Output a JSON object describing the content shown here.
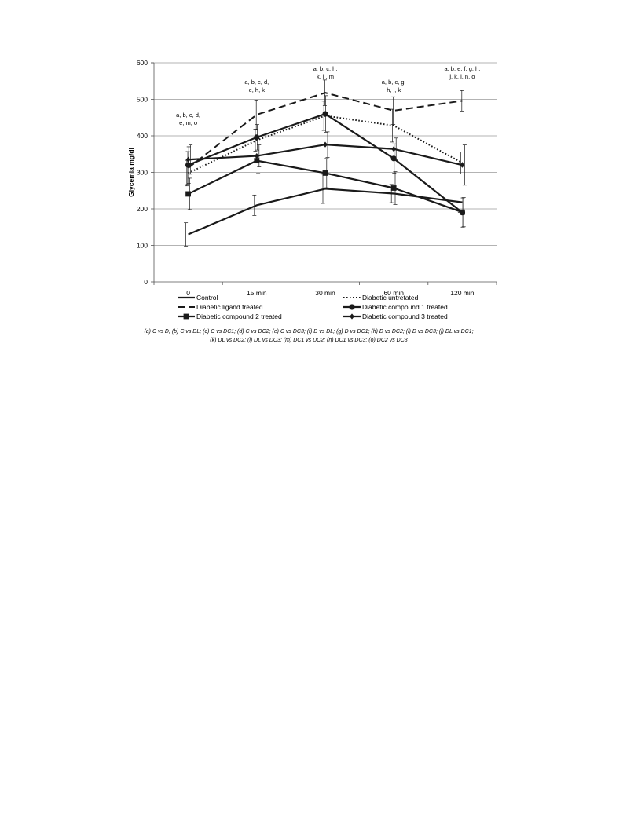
{
  "chart_data": {
    "type": "line",
    "title": "",
    "xlabel": "",
    "ylabel": "Glycemia mg/dl",
    "ylim": [
      0,
      600
    ],
    "yticks": [
      0,
      100,
      200,
      300,
      400,
      500,
      600
    ],
    "grid": true,
    "legend_position": "bottom",
    "categories": [
      "0",
      "15 min",
      "30 min",
      "60 min",
      "120 min"
    ],
    "series": [
      {
        "name": "Control",
        "style": "solid",
        "marker": "none",
        "values": [
          130,
          210,
          255,
          242,
          218
        ],
        "errors": [
          32,
          28,
          40,
          25,
          28
        ]
      },
      {
        "name": "Diabetic untretated",
        "style": "dotted",
        "marker": "none",
        "values": [
          298,
          388,
          455,
          428,
          326
        ],
        "errors": [
          35,
          30,
          40,
          45,
          30
        ]
      },
      {
        "name": "Diabetic ligand treated",
        "style": "dashed",
        "marker": "none",
        "values": [
          312,
          458,
          518,
          469,
          496
        ],
        "errors": [
          45,
          40,
          35,
          38,
          28
        ]
      },
      {
        "name": "Diabetic compound 1 treated",
        "style": "solid",
        "marker": "circle",
        "values": [
          320,
          396,
          460,
          338,
          190
        ],
        "errors": [
          50,
          35,
          50,
          40,
          40
        ]
      },
      {
        "name": "Diabetic compound 2 treated",
        "style": "solid",
        "marker": "square",
        "values": [
          241,
          332,
          298,
          257,
          191
        ],
        "errors": [
          43,
          35,
          40,
          45,
          40
        ]
      },
      {
        "name": "Diabetic compound 3 treated",
        "style": "solid",
        "marker": "diamond",
        "values": [
          335,
          345,
          376,
          364,
          320
        ],
        "errors": [
          40,
          30,
          35,
          30,
          55
        ]
      }
    ],
    "annotations": [
      {
        "category": "0",
        "lines": [
          "a, b, c, d,",
          "e, m, o"
        ],
        "y": 452
      },
      {
        "category": "15 min",
        "lines": [
          "a, b, c, d,",
          "e, h, k"
        ],
        "y": 542
      },
      {
        "category": "30 min",
        "lines": [
          "a, b, c, h,",
          "k, l , m"
        ],
        "y": 578
      },
      {
        "category": "60 min",
        "lines": [
          "a, b, c, g,",
          "h, j, k"
        ],
        "y": 542
      },
      {
        "category": "120 min",
        "lines": [
          "a, b, e, f, g, h,",
          "j, k, l, n, o"
        ],
        "y": 578
      }
    ]
  },
  "colors": {
    "line": "#1a1a1a",
    "grid": "#9a9a9a",
    "axis": "#555555"
  },
  "caption": {
    "line1": "(a) C vs D; (b) C vs DL; (c) C vs DC1; (d) C vs DC2; (e) C vs DC3; (f) D vs DL; (g) D vs DC1; (h) D vs DC2; (i) D vs DC3; (j) DL vs DC1;",
    "line2": "(k) DL vs DC2; (l) DL vs  DC3; (m) DC1 vs DC2; (n) DC1 vs DC3; (o) DC2 vs DC3"
  }
}
